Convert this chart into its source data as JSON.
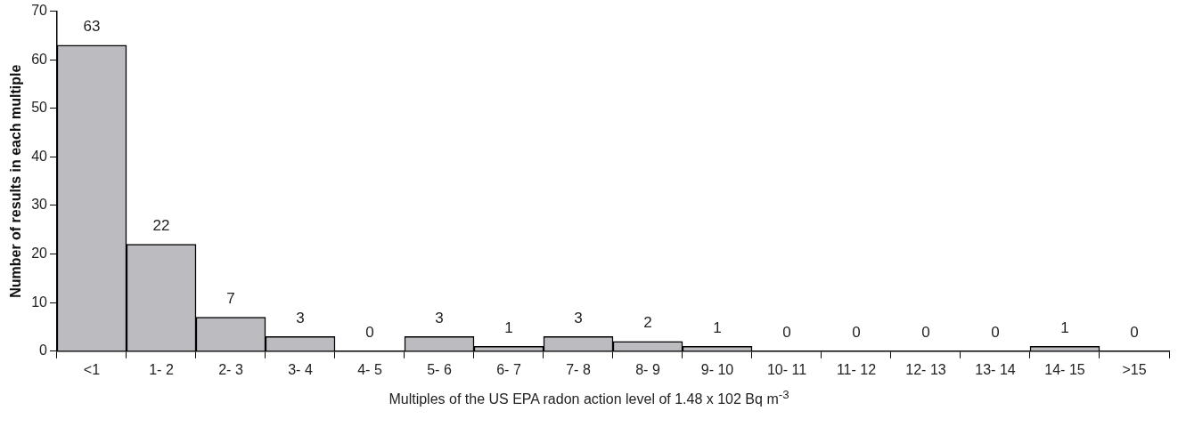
{
  "chart_data": {
    "type": "bar",
    "categories": [
      "<1",
      "1- 2",
      "2- 3",
      "3- 4",
      "4- 5",
      "5- 6",
      "6- 7",
      "7- 8",
      "8- 9",
      "9- 10",
      "10- 11",
      "11- 12",
      "12- 13",
      "13- 14",
      "14- 15",
      ">15"
    ],
    "values": [
      63,
      22,
      7,
      3,
      0,
      3,
      1,
      3,
      2,
      1,
      0,
      0,
      0,
      0,
      1,
      0
    ],
    "color": "#bcbcc0",
    "ylim": [
      0,
      70
    ],
    "yticks": [
      0,
      10,
      20,
      30,
      40,
      50,
      60,
      70
    ],
    "xlabel": "Multiples of the US  EPA radon action level of 1.48 x 102 Bq m$^{-3}$",
    "ylabel": "Number of results in each multiple",
    "data_labels": true,
    "grid": false,
    "legend": false
  }
}
